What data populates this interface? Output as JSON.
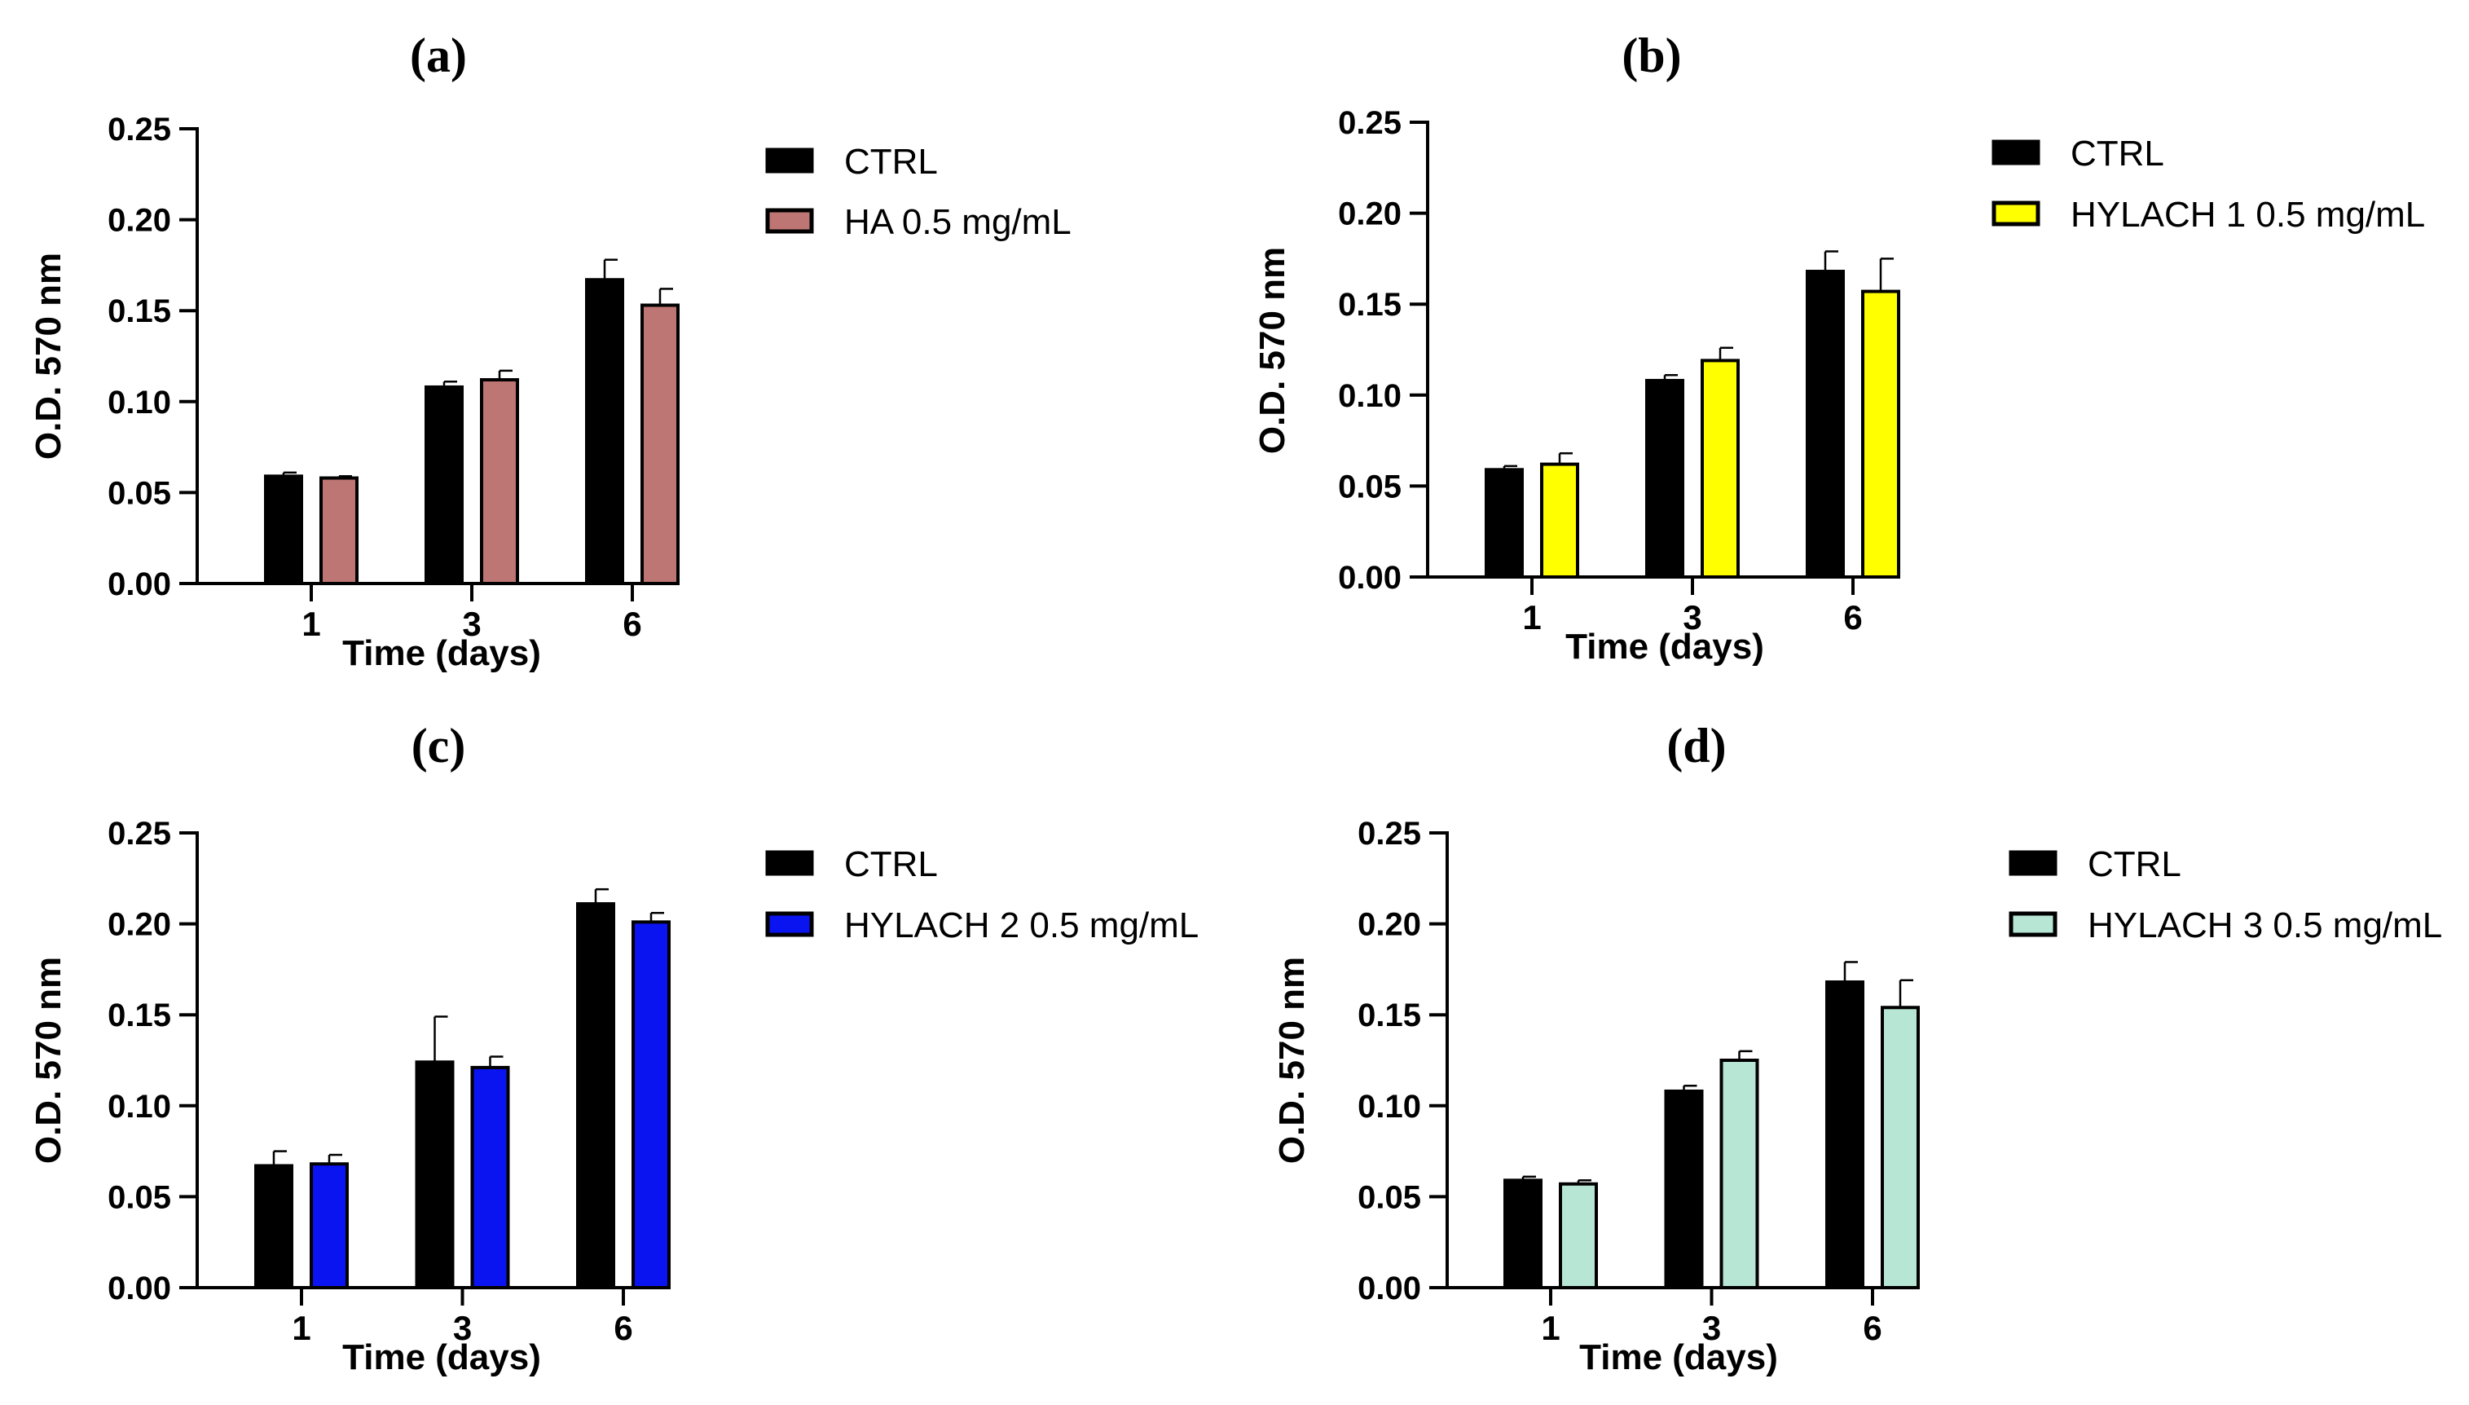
{
  "chart_data": [
    {
      "panel": "(a)",
      "type": "bar",
      "categories": [
        "1",
        "3",
        "6"
      ],
      "xlabel": "Time (days)",
      "ylabel": "O.D. 570 nm",
      "ylim": [
        0,
        0.25
      ],
      "yticks": [
        "0.00",
        "0.05",
        "0.10",
        "0.15",
        "0.20",
        "0.25"
      ],
      "series": [
        {
          "name": "CTRL",
          "color": "#000000",
          "values": [
            0.059,
            0.108,
            0.167
          ],
          "errors": [
            0.002,
            0.003,
            0.011
          ]
        },
        {
          "name": "HA 0.5 mg/mL",
          "color": "#bd7673",
          "values": [
            0.058,
            0.112,
            0.153
          ],
          "errors": [
            0.001,
            0.005,
            0.009
          ]
        }
      ]
    },
    {
      "panel": "(b)",
      "type": "bar",
      "categories": [
        "1",
        "3",
        "6"
      ],
      "xlabel": "Time (days)",
      "ylabel": "O.D. 570 nm",
      "ylim": [
        0,
        0.25
      ],
      "yticks": [
        "0.00",
        "0.05",
        "0.10",
        "0.15",
        "0.20",
        "0.25"
      ],
      "series": [
        {
          "name": "CTRL",
          "color": "#000000",
          "values": [
            0.059,
            0.108,
            0.168
          ],
          "errors": [
            0.002,
            0.003,
            0.011
          ]
        },
        {
          "name": "HYLACH 1 0.5 mg/mL",
          "color": "#ffff00",
          "values": [
            0.062,
            0.119,
            0.157
          ],
          "errors": [
            0.006,
            0.007,
            0.018
          ]
        }
      ]
    },
    {
      "panel": "(c)",
      "type": "bar",
      "categories": [
        "1",
        "3",
        "6"
      ],
      "xlabel": "Time (days)",
      "ylabel": "O.D. 570 nm",
      "ylim": [
        0,
        0.25
      ],
      "yticks": [
        "0.00",
        "0.05",
        "0.10",
        "0.15",
        "0.20",
        "0.25"
      ],
      "series": [
        {
          "name": "CTRL",
          "color": "#000000",
          "values": [
            0.067,
            0.124,
            0.211
          ],
          "errors": [
            0.008,
            0.025,
            0.008
          ]
        },
        {
          "name": "HYLACH 2 0.5 mg/mL",
          "color": "#0a14f0",
          "values": [
            0.068,
            0.121,
            0.201
          ],
          "errors": [
            0.005,
            0.006,
            0.005
          ]
        }
      ]
    },
    {
      "panel": "(d)",
      "type": "bar",
      "categories": [
        "1",
        "3",
        "6"
      ],
      "xlabel": "Time (days)",
      "ylabel": "O.D. 570 nm",
      "ylim": [
        0,
        0.25
      ],
      "yticks": [
        "0.00",
        "0.05",
        "0.10",
        "0.15",
        "0.20",
        "0.25"
      ],
      "series": [
        {
          "name": "CTRL",
          "color": "#000000",
          "values": [
            0.059,
            0.108,
            0.168
          ],
          "errors": [
            0.002,
            0.003,
            0.011
          ]
        },
        {
          "name": "HYLACH 3 0.5 mg/mL",
          "color": "#b7e6d4",
          "values": [
            0.057,
            0.125,
            0.154
          ],
          "errors": [
            0.002,
            0.005,
            0.015
          ]
        }
      ]
    }
  ]
}
